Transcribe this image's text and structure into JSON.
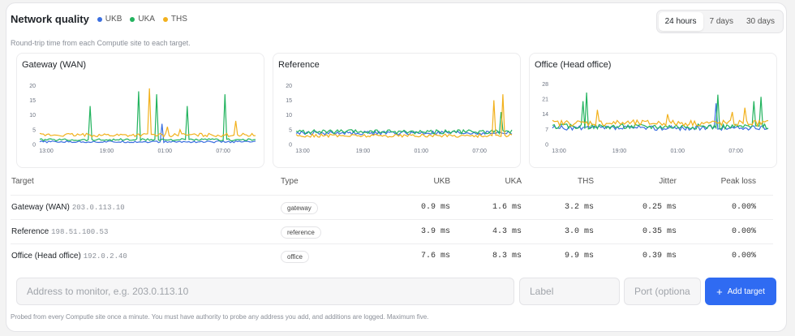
{
  "header": {
    "title": "Network quality",
    "subtitle": "Round-trip time from each Computle site to each target.",
    "legend": [
      {
        "name": "UKB",
        "color": "#3b6fe0"
      },
      {
        "name": "UKA",
        "color": "#22b35e"
      },
      {
        "name": "THS",
        "color": "#f2b11d"
      }
    ],
    "ranges": [
      "24 hours",
      "7 days",
      "30 days"
    ],
    "active_range": "24 hours"
  },
  "chart_data": [
    {
      "type": "line",
      "title": "Gateway (WAN)",
      "x_ticks": [
        "13:00",
        "19:00",
        "01:00",
        "07:00"
      ],
      "y_ticks": [
        "0",
        "5",
        "10",
        "15",
        "20"
      ],
      "ylim": [
        0,
        22
      ],
      "series": [
        {
          "name": "UKB",
          "color": "#3b6fe0",
          "baseline": 0.9,
          "spikes": [
            [
              0.57,
              7
            ]
          ]
        },
        {
          "name": "UKA",
          "color": "#22b35e",
          "baseline": 1.6,
          "spikes": [
            [
              0.23,
              13
            ],
            [
              0.46,
              18
            ],
            [
              0.54,
              17
            ],
            [
              0.68,
              13
            ],
            [
              0.86,
              17
            ]
          ]
        },
        {
          "name": "THS",
          "color": "#f2b11d",
          "baseline": 3.2,
          "spikes": [
            [
              0.51,
              19
            ],
            [
              0.59,
              6
            ],
            [
              0.65,
              5
            ],
            [
              0.91,
              8
            ]
          ]
        }
      ]
    },
    {
      "type": "line",
      "title": "Reference",
      "x_ticks": [
        "13:00",
        "19:00",
        "01:00",
        "07:00"
      ],
      "y_ticks": [
        "0",
        "5",
        "10",
        "15",
        "20"
      ],
      "ylim": [
        0,
        22
      ],
      "series": [
        {
          "name": "UKB",
          "color": "#3b6fe0",
          "baseline": 3.9,
          "spikes": []
        },
        {
          "name": "UKA",
          "color": "#22b35e",
          "baseline": 4.3,
          "spikes": [
            [
              0.95,
              11
            ]
          ]
        },
        {
          "name": "THS",
          "color": "#f2b11d",
          "baseline": 3.0,
          "spikes": [
            [
              0.92,
              15
            ],
            [
              0.96,
              17
            ]
          ]
        }
      ]
    },
    {
      "type": "line",
      "title": "Office (Head office)",
      "x_ticks": [
        "13:00",
        "19:00",
        "01:00",
        "07:00"
      ],
      "y_ticks": [
        "0",
        "7",
        "14",
        "21",
        "28"
      ],
      "ylim": [
        0,
        30
      ],
      "series": [
        {
          "name": "UKB",
          "color": "#3b6fe0",
          "baseline": 7.6,
          "spikes": [
            [
              0.76,
              19
            ]
          ]
        },
        {
          "name": "UKA",
          "color": "#22b35e",
          "baseline": 8.3,
          "spikes": [
            [
              0.14,
              20
            ],
            [
              0.16,
              24
            ],
            [
              0.77,
              23
            ],
            [
              0.93,
              20
            ],
            [
              0.97,
              22
            ]
          ]
        },
        {
          "name": "THS",
          "color": "#f2b11d",
          "baseline": 9.9,
          "spikes": [
            [
              0.21,
              16
            ],
            [
              0.53,
              14
            ],
            [
              0.83,
              15
            ],
            [
              0.89,
              17
            ]
          ]
        }
      ]
    }
  ],
  "table": {
    "headers": {
      "target": "Target",
      "type": "Type",
      "ukb": "UKB",
      "uka": "UKA",
      "ths": "THS",
      "jitter": "Jitter",
      "peak_loss": "Peak loss"
    },
    "rows": [
      {
        "name": "Gateway (WAN)",
        "address": "203.0.113.10",
        "type": "gateway",
        "ukb": "0.9 ms",
        "uka": "1.6 ms",
        "ths": "3.2 ms",
        "jitter": "0.25 ms",
        "peak_loss": "0.00%"
      },
      {
        "name": "Reference",
        "address": "198.51.100.53",
        "type": "reference",
        "ukb": "3.9 ms",
        "uka": "4.3 ms",
        "ths": "3.0 ms",
        "jitter": "0.35 ms",
        "peak_loss": "0.00%"
      },
      {
        "name": "Office (Head office)",
        "address": "192.0.2.40",
        "type": "office",
        "ukb": "7.6 ms",
        "uka": "8.3 ms",
        "ths": "9.9 ms",
        "jitter": "0.39 ms",
        "peak_loss": "0.00%"
      }
    ]
  },
  "form": {
    "address_placeholder": "Address to monitor, e.g. 203.0.113.10",
    "label_placeholder": "Label",
    "port_placeholder": "Port (optional)",
    "add_label": "Add target",
    "add_icon": "plus-icon",
    "footnote": "Probed from every Computle site once a minute. You must have authority to probe any address you add, and additions are logged. Maximum five."
  }
}
